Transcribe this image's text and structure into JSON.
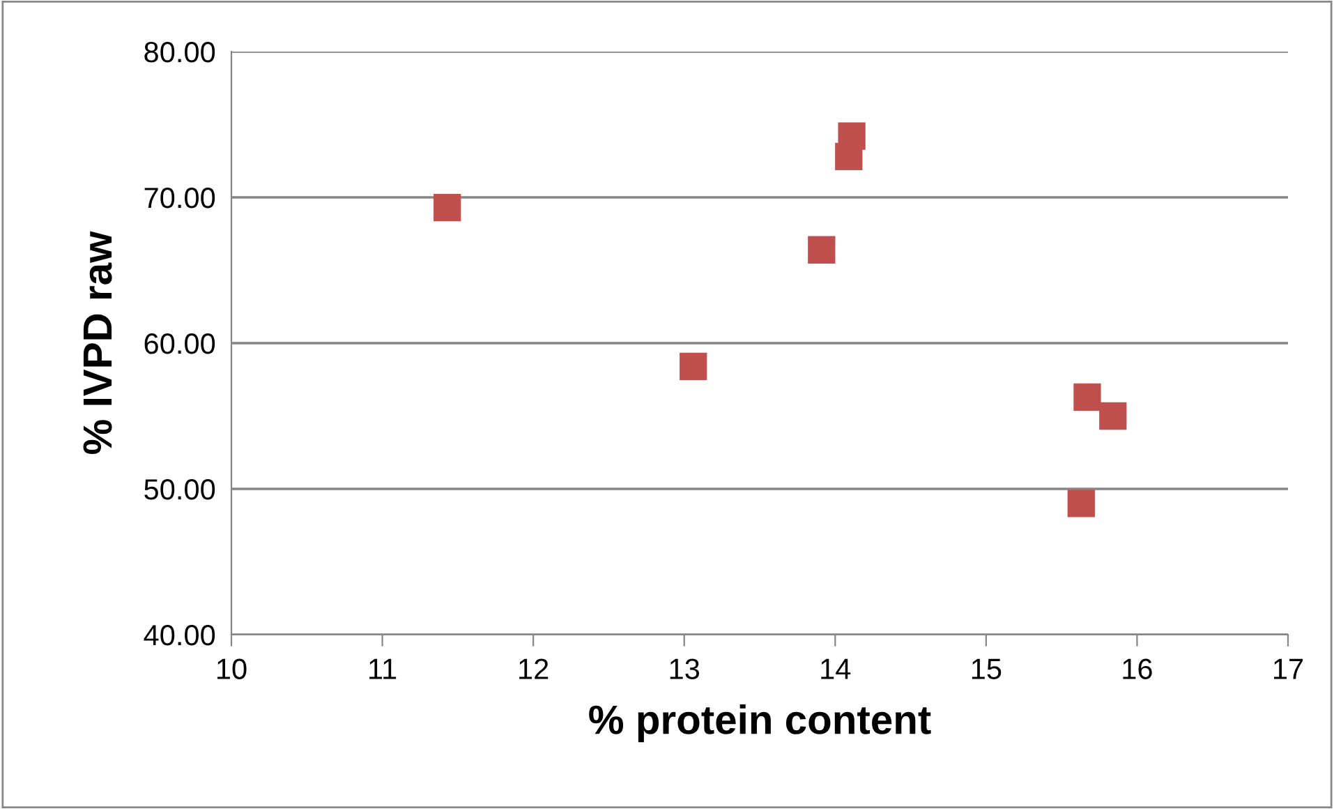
{
  "chart_data": {
    "type": "scatter",
    "xlabel": "% protein content",
    "ylabel": "% IVPD raw",
    "series": [
      {
        "color": "#c0504d",
        "x": [
          11.43,
          13.06,
          13.91,
          14.09,
          14.11,
          15.67,
          15.84,
          15.63
        ],
        "values": [
          69.3,
          58.4,
          66.4,
          72.8,
          74.2,
          56.3,
          55.0,
          49.0
        ]
      }
    ],
    "xlim": [
      10,
      17
    ],
    "xticks": [
      10,
      11,
      12,
      13,
      14,
      15,
      16,
      17
    ],
    "ylim": [
      40,
      80
    ],
    "yticks": [
      {
        "value": 40,
        "label": "40.00"
      },
      {
        "value": 50,
        "label": "50.00"
      },
      {
        "value": 60,
        "label": "60.00"
      },
      {
        "value": 70,
        "label": "70.00"
      },
      {
        "value": 80,
        "label": "80.00"
      }
    ],
    "grid": "y",
    "marker": "square"
  }
}
